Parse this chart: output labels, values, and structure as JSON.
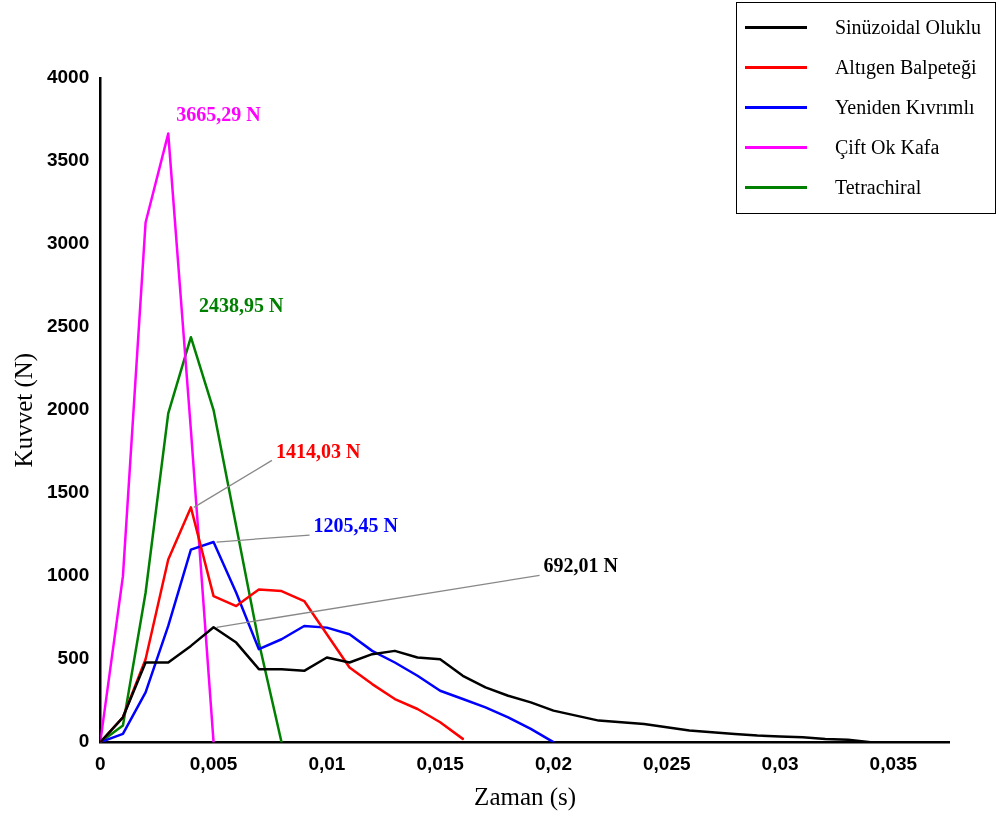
{
  "chart_data": {
    "type": "line",
    "xlabel": "Zaman (s)",
    "ylabel": "Kuvvet (N)",
    "legend": "top right",
    "grid": false,
    "marker": "none",
    "line_style": "solid",
    "xlim": [
      0,
      0.0375
    ],
    "xticks": [
      {
        "value": 0,
        "label": "0"
      },
      {
        "value": 0.005,
        "label": "0,005"
      },
      {
        "value": 0.01,
        "label": "0,01"
      },
      {
        "value": 0.015,
        "label": "0,015"
      },
      {
        "value": 0.02,
        "label": "0,02"
      },
      {
        "value": 0.025,
        "label": "0,025"
      },
      {
        "value": 0.03,
        "label": "0,03"
      },
      {
        "value": 0.035,
        "label": "0,035"
      }
    ],
    "ylim": [
      0,
      4000
    ],
    "yticks": [
      0,
      500,
      1000,
      1500,
      2000,
      2500,
      3000,
      3500,
      4000
    ],
    "series": [
      {
        "name": "Sinüzoidal Oluklu",
        "color": "#000000",
        "x": [
          0,
          0.001,
          0.002,
          0.003,
          0.004,
          0.005,
          0.006,
          0.007,
          0.008,
          0.009,
          0.01,
          0.011,
          0.012,
          0.013,
          0.014,
          0.015,
          0.016,
          0.017,
          0.018,
          0.019,
          0.02,
          0.021,
          0.022,
          0.023,
          0.024,
          0.025,
          0.026,
          0.027,
          0.028,
          0.029,
          0.03,
          0.031,
          0.032,
          0.033,
          0.034
        ],
        "values": [
          0,
          150,
          480,
          480,
          580,
          692.01,
          600,
          440,
          440,
          430,
          510,
          480,
          530,
          550,
          510,
          500,
          400,
          330,
          280,
          240,
          190,
          160,
          130,
          120,
          110,
          90,
          70,
          60,
          50,
          40,
          35,
          30,
          20,
          15,
          0
        ]
      },
      {
        "name": "Altıgen Balpeteği",
        "color": "#ff0000",
        "x": [
          0,
          0.001,
          0.002,
          0.003,
          0.004,
          0.005,
          0.006,
          0.007,
          0.008,
          0.009,
          0.01,
          0.011,
          0.012,
          0.013,
          0.014,
          0.015,
          0.016
        ],
        "values": [
          0,
          150,
          500,
          1100,
          1414.03,
          880,
          820,
          920,
          910,
          850,
          650,
          450,
          350,
          260,
          200,
          120,
          20
        ]
      },
      {
        "name": "Yeniden Kıvrımlı",
        "color": "#0000ff",
        "x": [
          0,
          0.001,
          0.002,
          0.003,
          0.004,
          0.005,
          0.006,
          0.007,
          0.008,
          0.009,
          0.01,
          0.011,
          0.012,
          0.013,
          0.014,
          0.015,
          0.016,
          0.017,
          0.018,
          0.019,
          0.02
        ],
        "values": [
          0,
          50,
          300,
          700,
          1160,
          1205.45,
          900,
          560,
          620,
          700,
          690,
          650,
          550,
          480,
          400,
          310,
          260,
          210,
          150,
          80,
          0
        ]
      },
      {
        "name": "Çift Ok Kafa",
        "color": "#ff00ff",
        "x": [
          0,
          0.001,
          0.002,
          0.003,
          0.004,
          0.005
        ],
        "values": [
          0,
          1000,
          3130,
          3665.29,
          1880,
          0
        ]
      },
      {
        "name": "Tetrachiral",
        "color": "#008000",
        "x": [
          0,
          0.001,
          0.002,
          0.003,
          0.004,
          0.005,
          0.006,
          0.007,
          0.008
        ],
        "values": [
          0,
          100,
          900,
          1980,
          2438.95,
          2000,
          1300,
          600,
          0
        ]
      }
    ],
    "annotations": [
      {
        "text": "692,01 N",
        "x": 0.005,
        "y": 692.01
      },
      {
        "text": "1414,03 N",
        "x": 0.004,
        "y": 1414.03
      },
      {
        "text": "1205,45 N",
        "x": 0.005,
        "y": 1205.45
      },
      {
        "text": "3665,29 N",
        "x": 0.003,
        "y": 3665.29
      },
      {
        "text": "2438,95 N",
        "x": 0.004,
        "y": 2438.95
      }
    ]
  }
}
